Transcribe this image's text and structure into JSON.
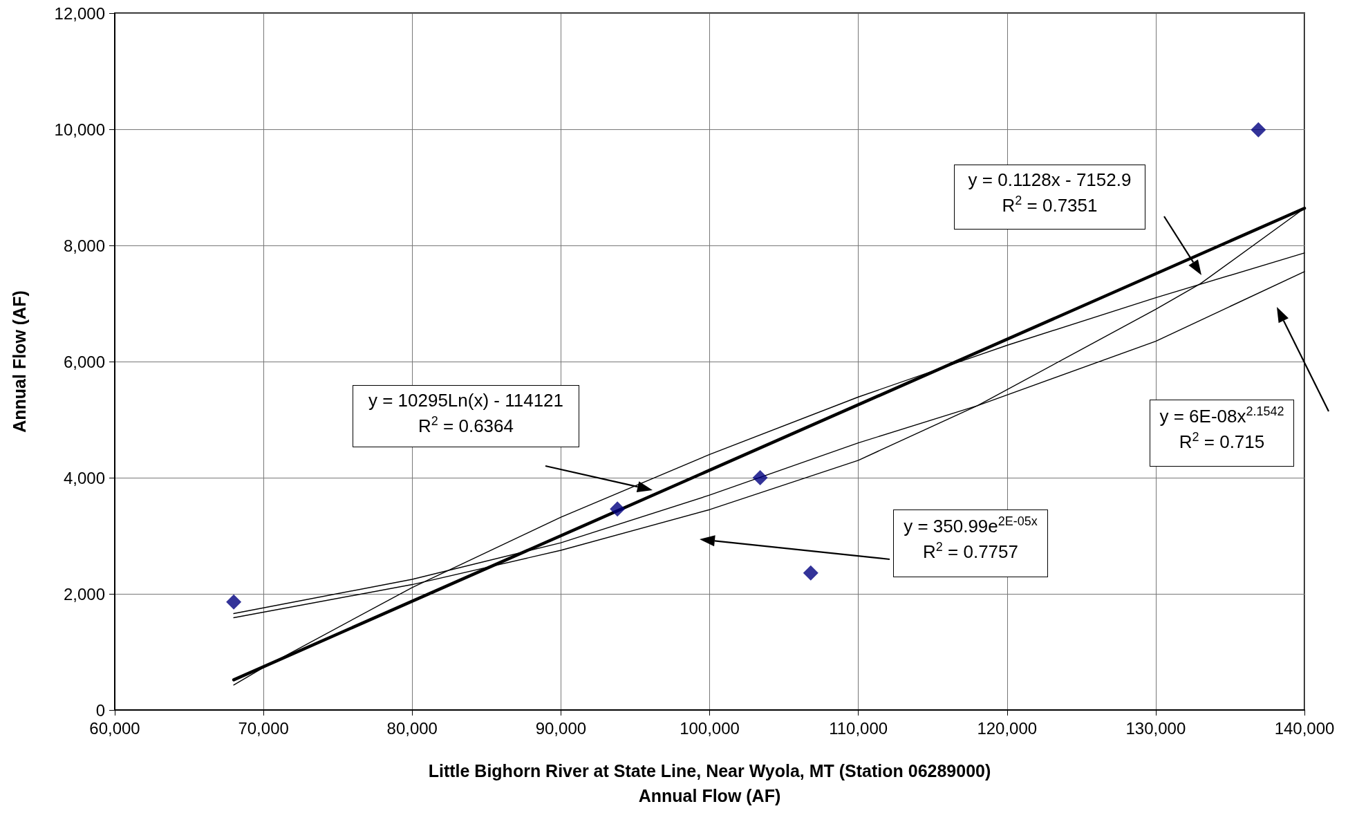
{
  "chart_data": {
    "type": "scatter",
    "xlabel": "Little Bighorn River at State Line, Near Wyola, MT (Station 06289000)\nAnnual Flow (AF)",
    "ylabel": "Annual Flow (AF)",
    "xlim": [
      60000,
      140000
    ],
    "xticks": [
      {
        "value": 60000,
        "label": "60,000"
      },
      {
        "value": 70000,
        "label": "70,000"
      },
      {
        "value": 80000,
        "label": "80,000"
      },
      {
        "value": 90000,
        "label": "90,000"
      },
      {
        "value": 100000,
        "label": "100,000"
      },
      {
        "value": 110000,
        "label": "110,000"
      },
      {
        "value": 120000,
        "label": "120,000"
      },
      {
        "value": 130000,
        "label": "130,000"
      },
      {
        "value": 140000,
        "label": "140,000"
      }
    ],
    "ylim": [
      0,
      12000
    ],
    "yticks": [
      0,
      {
        "value": 2000,
        "label": "2,000"
      },
      {
        "value": 4000,
        "label": "4,000"
      },
      {
        "value": 6000,
        "label": "6,000"
      },
      {
        "value": 8000,
        "label": "8,000"
      },
      {
        "value": 10000,
        "label": "10,000"
      },
      {
        "value": 12000,
        "label": "12,000"
      }
    ],
    "grid": true,
    "series": [
      {
        "marker": "diamond",
        "color": "#000080",
        "x": [
          68000,
          93800,
          103400,
          106800,
          136900
        ],
        "values": [
          1860,
          3460,
          4000,
          2360,
          9990
        ]
      },
      {
        "type": "line",
        "marker": "none",
        "color": "#000000",
        "x": [
          68000,
          140000
        ],
        "values": [
          520,
          8640
        ]
      },
      {
        "type": "line",
        "marker": "none",
        "color": "#000000",
        "x": [
          68000,
          70000,
          80000,
          90000,
          100000,
          110000,
          120000,
          130000,
          140000
        ],
        "values": [
          430,
          730,
          2110,
          3320,
          4400,
          5390,
          6280,
          7100,
          7870
        ]
      },
      {
        "type": "line",
        "marker": "none",
        "color": "#000000",
        "x": [
          68000,
          80000,
          90000,
          100000,
          110000,
          118000,
          130000,
          140000
        ],
        "values": [
          1660,
          2250,
          2880,
          3700,
          4600,
          5240,
          6350,
          7550
        ]
      },
      {
        "type": "line",
        "marker": "none",
        "color": "#000000",
        "x": [
          68000,
          80000,
          90000,
          100000,
          110000,
          118000,
          130000,
          133000,
          140000
        ],
        "values": [
          1590,
          2160,
          2750,
          3450,
          4300,
          5240,
          6900,
          7340,
          8640
        ]
      }
    ],
    "annotations": [
      "y = 0.1128x - 7152.9\nR$^{2}$ = 0.7351",
      "y = 10295Ln(x) - 114121\nR$^{2}$ = 0.6364",
      "y = 350.99e$^{2E-05x}$\nR$^{2}$ = 0.7757",
      "y = 6E-08x$^{2.1542}$\nR$^{2}$ = 0.715"
    ]
  }
}
